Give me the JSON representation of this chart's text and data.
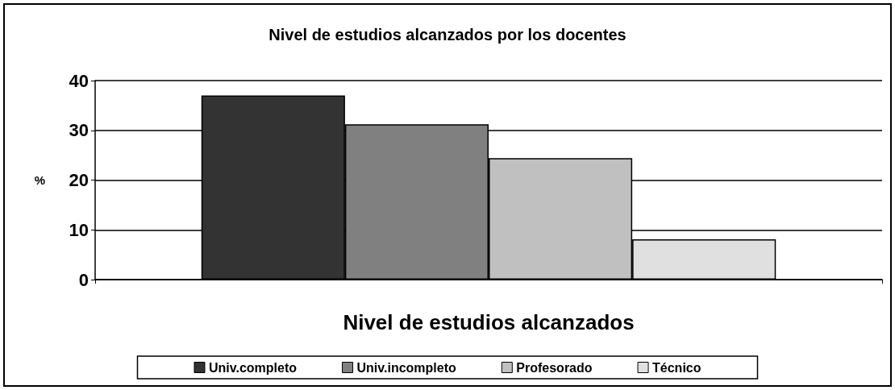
{
  "chart_data": {
    "type": "bar",
    "title": "Nivel de estudios alcanzados por los docentes",
    "xlabel": "Nivel de estudios alcanzados",
    "ylabel": "%",
    "categories": [
      null
    ],
    "series": [
      {
        "name": "Univ.completo",
        "color": "#333333",
        "values": [
          37
        ]
      },
      {
        "name": "Univ.incompleto",
        "color": "#808080",
        "values": [
          31.2
        ]
      },
      {
        "name": "Profesorado",
        "color": "#c0c0c0",
        "values": [
          24.4
        ]
      },
      {
        "name": "Técnico",
        "color": "#e0e0e0",
        "values": [
          8.1
        ]
      }
    ],
    "ylim": [
      0,
      40
    ],
    "yticks": [
      0,
      10,
      20,
      30,
      40
    ],
    "grid": "y",
    "legend": "bottom"
  }
}
